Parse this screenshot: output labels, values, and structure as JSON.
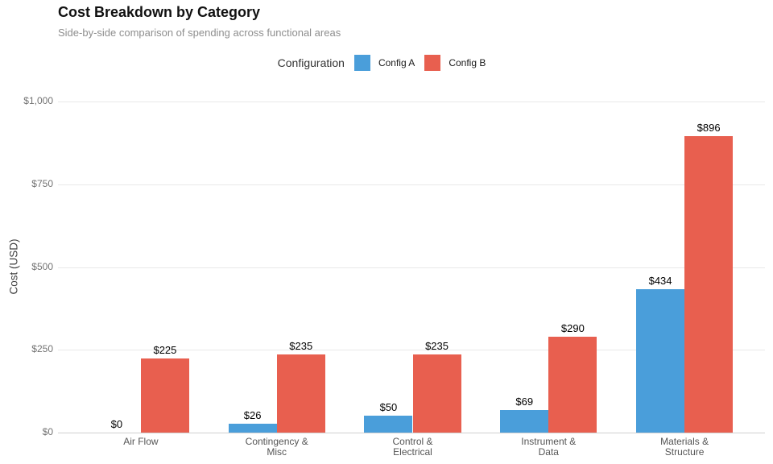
{
  "header": {
    "title": "Cost Breakdown by Category",
    "subtitle": "Side-by-side comparison of spending across functional areas"
  },
  "legend": {
    "title": "Configuration",
    "items": [
      {
        "label": "Config A",
        "color": "#4A9EDA"
      },
      {
        "label": "Config B",
        "color": "#E85F4F"
      }
    ]
  },
  "colors": {
    "config_a": "#4A9EDA",
    "config_b": "#E85F4F",
    "gridline": "#e8e8e8",
    "baseline": "#cfcfcf",
    "subtitle_text": "#8e8e8e",
    "tick_text": "#737373",
    "category_text": "#555555"
  },
  "chart_data": {
    "type": "bar",
    "title": "Cost Breakdown by Category",
    "subtitle": "Side-by-side comparison of spending across functional areas",
    "xlabel": "",
    "ylabel": "Cost (USD)",
    "ylim": [
      0,
      1000
    ],
    "grid": true,
    "legend_position": "top-center",
    "categories": [
      "Air Flow",
      "Contingency &\nMisc",
      "Control &\nElectrical",
      "Instrument &\nData",
      "Materials &\nStructure"
    ],
    "yticks": [
      {
        "value": 0,
        "label": "$0"
      },
      {
        "value": 250,
        "label": "$250"
      },
      {
        "value": 500,
        "label": "$500"
      },
      {
        "value": 750,
        "label": "$750"
      },
      {
        "value": 1000,
        "label": "$1,000"
      }
    ],
    "series": [
      {
        "name": "Config A",
        "color": "#4A9EDA",
        "values": [
          0,
          26,
          50,
          69,
          434
        ],
        "labels": [
          "$0",
          "$26",
          "$50",
          "$69",
          "$434"
        ]
      },
      {
        "name": "Config B",
        "color": "#E85F4F",
        "values": [
          225,
          235,
          235,
          290,
          896
        ],
        "labels": [
          "$225",
          "$235",
          "$235",
          "$290",
          "$896"
        ]
      }
    ]
  }
}
